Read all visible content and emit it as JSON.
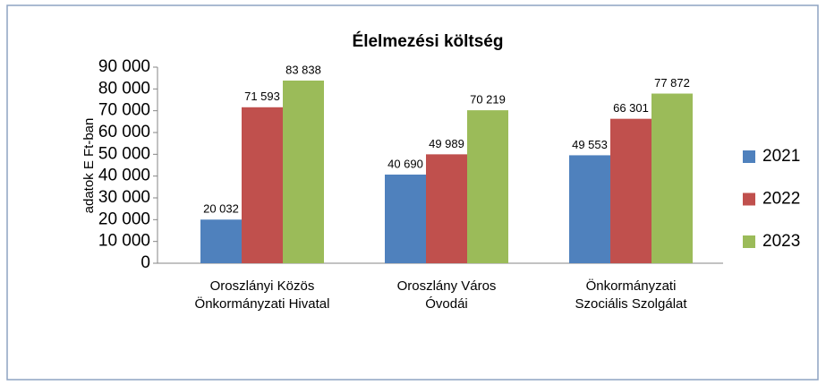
{
  "chart_data": {
    "type": "bar",
    "title": "Élelmezési költség",
    "ylabel": "adatok E Ft-ban",
    "categories": [
      "Oroszlányi Közös\nÖnkormányzati Hivatal",
      "Oroszlány Város\nÓvodái",
      "Önkormányzati\nSzociális Szolgálat"
    ],
    "series": [
      {
        "name": "2021",
        "color": "#4f81bd",
        "values": [
          20032,
          40690,
          49553
        ],
        "value_labels": [
          "20 032",
          "40 690",
          "49 553"
        ]
      },
      {
        "name": "2022",
        "color": "#c0504d",
        "values": [
          71593,
          49989,
          66301
        ],
        "value_labels": [
          "71 593",
          "49 989",
          "66 301"
        ]
      },
      {
        "name": "2023",
        "color": "#9bbb59",
        "values": [
          83838,
          70219,
          77872
        ],
        "value_labels": [
          "83 838",
          "70 219",
          "77 872"
        ]
      }
    ],
    "ylim": [
      0,
      90000
    ],
    "yticks": [
      {
        "value": 0,
        "label": "0"
      },
      {
        "value": 10000,
        "label": "10 000"
      },
      {
        "value": 20000,
        "label": "20 000"
      },
      {
        "value": 30000,
        "label": "30 000"
      },
      {
        "value": 40000,
        "label": "40 000"
      },
      {
        "value": 50000,
        "label": "50 000"
      },
      {
        "value": 60000,
        "label": "60 000"
      },
      {
        "value": 70000,
        "label": "70 000"
      },
      {
        "value": 80000,
        "label": "80 000"
      },
      {
        "value": 90000,
        "label": "90 000"
      }
    ],
    "grid": false,
    "legend": "right"
  }
}
